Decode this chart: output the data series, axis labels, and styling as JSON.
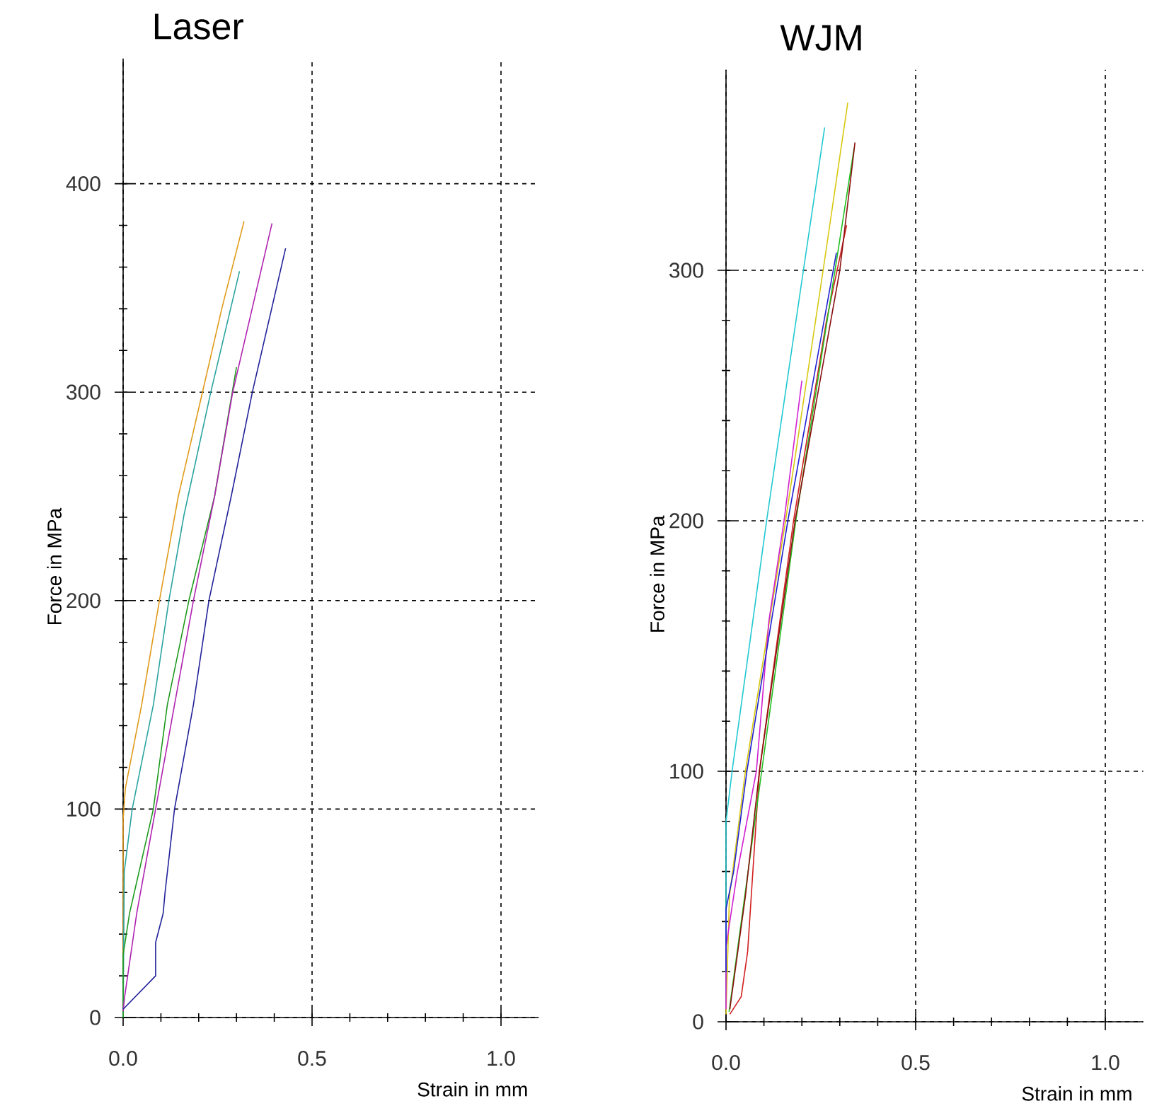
{
  "chart_data": [
    {
      "type": "line",
      "title": "Laser",
      "xlabel": "Strain in mm",
      "ylabel": "Force in MPa",
      "xlim": [
        0,
        1.1
      ],
      "ylim": [
        0,
        460
      ],
      "xticks": [
        {
          "value": 0,
          "label": "0.0"
        },
        {
          "value": 0.5,
          "label": "0.5"
        },
        {
          "value": 1,
          "label": "1.0"
        }
      ],
      "yticks": [
        0,
        100,
        200,
        300,
        400
      ],
      "grid": true,
      "series": [
        {
          "color": "#e09a1a",
          "x": [
            0,
            0,
            0.006,
            0.049,
            0.096,
            0.146,
            0.21,
            0.261,
            0.32
          ],
          "values": [
            0,
            95,
            110,
            150,
            200,
            250,
            300,
            340,
            382
          ]
        },
        {
          "color": "#2aa3a0",
          "x": [
            0,
            0.003,
            0.024,
            0.08,
            0.121,
            0.161,
            0.232,
            0.308
          ],
          "values": [
            0,
            70,
            100,
            150,
            200,
            241,
            300,
            358
          ]
        },
        {
          "color": "#1e9a1e",
          "x": [
            0,
            0,
            0.017,
            0.08,
            0.117,
            0.174,
            0.242,
            0.3
          ],
          "values": [
            0,
            30,
            50,
            100,
            150,
            200,
            250,
            312
          ]
        },
        {
          "color": "#b023b0",
          "x": [
            0,
            0.004,
            0.036,
            0.086,
            0.136,
            0.186,
            0.242,
            0.29,
            0.394
          ],
          "values": [
            3,
            10,
            50,
            100,
            150,
            200,
            250,
            300,
            381
          ]
        },
        {
          "color": "#22229a",
          "x": [
            0,
            0.086,
            0.086,
            0.106,
            0.111,
            0.136,
            0.186,
            0.227,
            0.286,
            0.342,
            0.43
          ],
          "values": [
            4,
            20,
            36,
            50,
            60,
            100,
            150,
            200,
            250,
            300,
            369
          ]
        }
      ]
    },
    {
      "type": "line",
      "title": "WJM",
      "xlabel": "Strain in mm",
      "ylabel": "Force in MPa",
      "xlim": [
        0,
        1.1
      ],
      "ylim": [
        0,
        380
      ],
      "xticks": [
        {
          "value": 0,
          "label": "0.0"
        },
        {
          "value": 0.5,
          "label": "0.5"
        },
        {
          "value": 1,
          "label": "1.0"
        }
      ],
      "yticks": [
        0,
        100,
        200,
        300
      ],
      "grid": true,
      "series": [
        {
          "color": "#20c8d0",
          "x": [
            0,
            0,
            0.016,
            0.107,
            0.204,
            0.26
          ],
          "values": [
            5,
            80,
            100,
            200,
            300,
            357
          ]
        },
        {
          "color": "#d8c810",
          "x": [
            0,
            0.009,
            0.051,
            0.157,
            0.256,
            0.321
          ],
          "values": [
            3,
            50,
            100,
            200,
            300,
            367
          ]
        },
        {
          "color": "#d02020",
          "x": [
            0.01,
            0.04,
            0.057,
            0.088,
            0.178,
            0.265,
            0.318
          ],
          "values": [
            3,
            10,
            28,
            100,
            200,
            280,
            318
          ]
        },
        {
          "color": "#20c020",
          "x": [
            0.008,
            0.094,
            0.184,
            0.338
          ],
          "values": [
            4,
            100,
            200,
            349
          ]
        },
        {
          "color": "#8a1010",
          "x": [
            0.01,
            0.051,
            0.088,
            0.182,
            0.3,
            0.34
          ],
          "values": [
            5,
            50,
            100,
            200,
            300,
            351
          ]
        },
        {
          "color": "#d020d0",
          "x": [
            0,
            0,
            0.03,
            0.08,
            0.113,
            0.153,
            0.2
          ],
          "values": [
            5,
            30,
            60,
            100,
            160,
            200,
            256
          ]
        },
        {
          "color": "#2020d0",
          "x": [
            0,
            0,
            0.02,
            0.055,
            0.163,
            0.291
          ],
          "values": [
            20,
            45,
            60,
            100,
            200,
            307
          ]
        }
      ]
    }
  ]
}
